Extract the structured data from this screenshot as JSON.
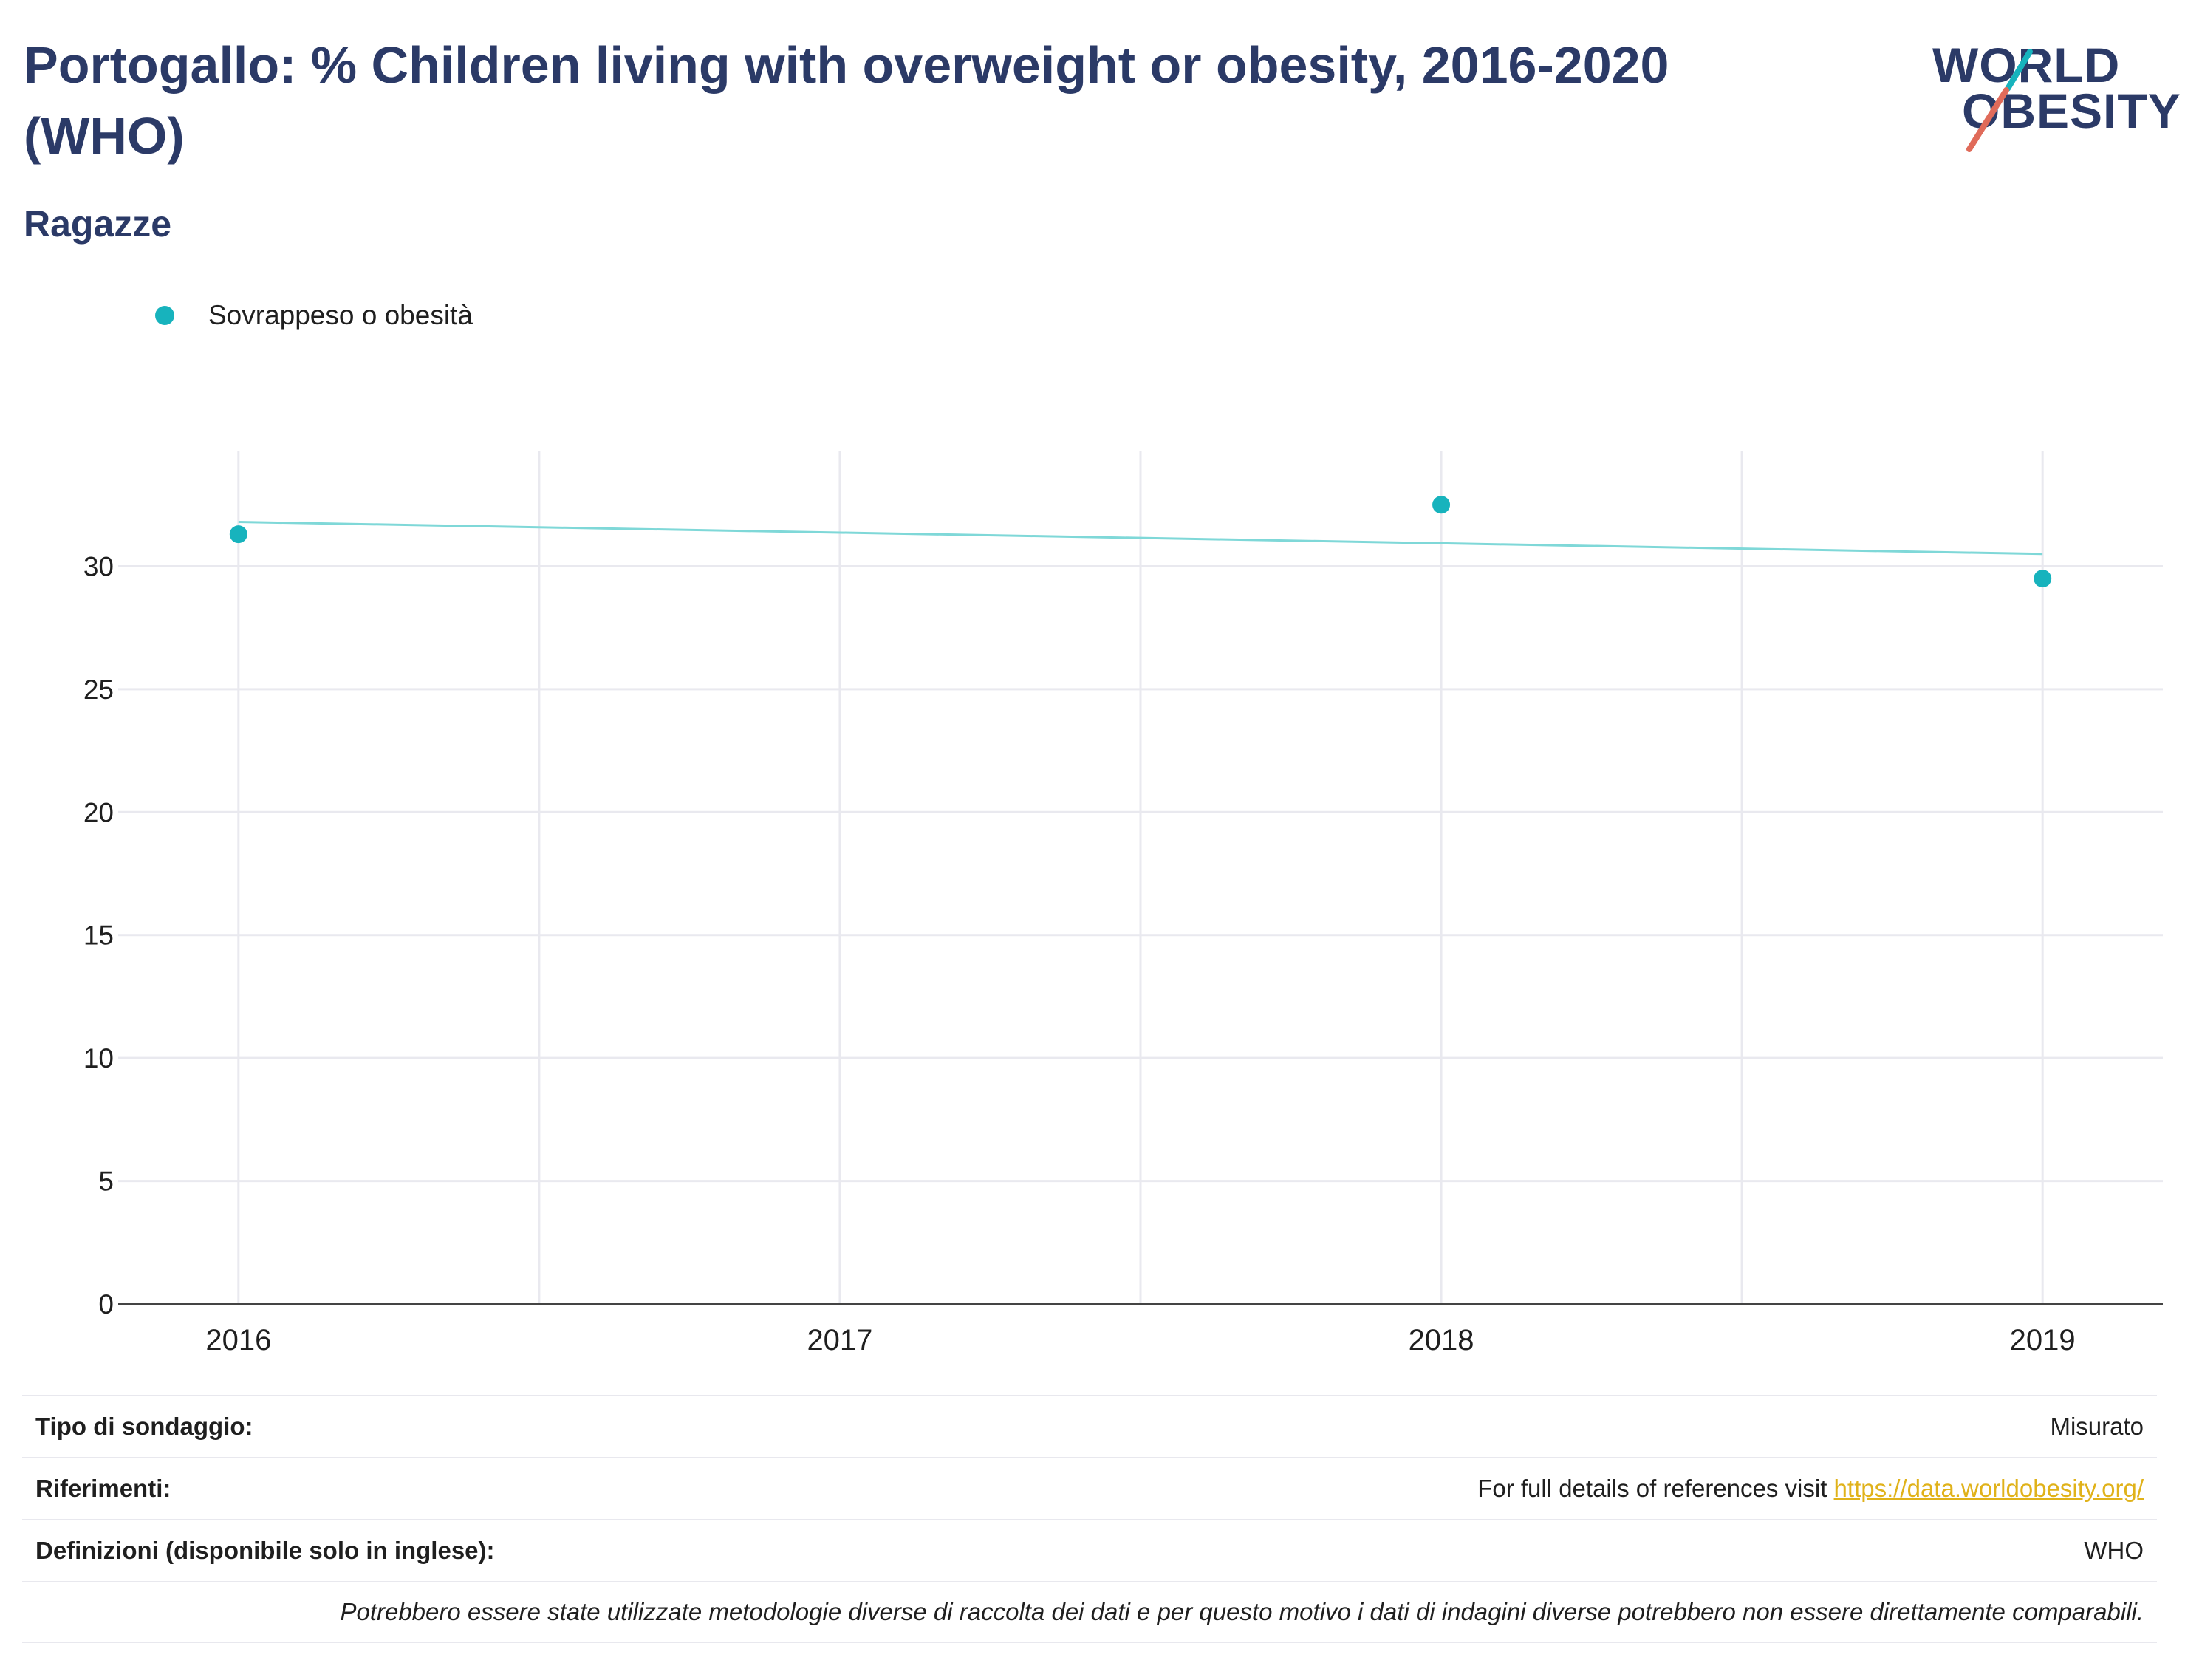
{
  "header": {
    "title": "Portogallo: % Children living with overweight or obesity, 2016-2020 (WHO)",
    "subtitle": "Ragazze"
  },
  "logo": {
    "line1": "WORLD",
    "line2": "OBESITY",
    "colors": {
      "text": "#2b3a67",
      "slash_top": "#17b3bd",
      "slash_bottom": "#e06b5a"
    }
  },
  "legend": {
    "label": "Sovrappeso o obesità",
    "color": "#17b3bd"
  },
  "chart_data": {
    "type": "scatter",
    "title": "Portogallo: % Children living with overweight or obesity, 2016-2020 (WHO)",
    "subtitle": "Ragazze",
    "xlabel": "",
    "ylabel": "",
    "x_ticks": [
      "2016",
      "2017",
      "2018",
      "2019"
    ],
    "y_ticks": [
      0,
      5,
      10,
      15,
      20,
      25,
      30
    ],
    "xlim": [
      2015.8,
      2019.2
    ],
    "ylim": [
      0,
      34.7
    ],
    "grid": true,
    "legend_position": "top-left",
    "series": [
      {
        "name": "Sovrappeso o obesità",
        "color": "#17b3bd",
        "points": [
          {
            "x": 2016,
            "y": 31.3
          },
          {
            "x": 2018,
            "y": 32.5
          },
          {
            "x": 2019,
            "y": 29.5
          }
        ]
      }
    ],
    "trendline": {
      "color": "#7fd8d8",
      "points": [
        {
          "x": 2016,
          "y": 31.8
        },
        {
          "x": 2019,
          "y": 30.5
        }
      ]
    }
  },
  "info": {
    "rows": [
      {
        "key": "Tipo di sondaggio:",
        "value": "Misurato"
      },
      {
        "key": "Riferimenti:",
        "value": "For full details of references visit ",
        "link": "https://data.worldobesity.org/"
      },
      {
        "key": "Definizioni (disponibile solo in inglese):",
        "value": "WHO"
      }
    ],
    "note": "Potrebbero essere state utilizzate metodologie diverse di raccolta dei dati e per questo motivo i dati di indagini diverse potrebbero non essere direttamente comparabili."
  }
}
